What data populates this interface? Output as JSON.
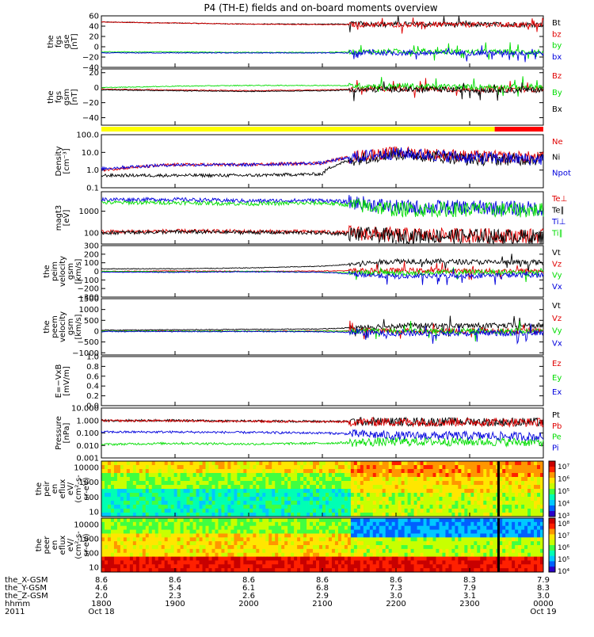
{
  "title": "P4 (TH-E) fields and on-board moments overview",
  "colors": {
    "black": "#000000",
    "red": "#e00000",
    "green": "#00dd00",
    "blue": "#0000dd",
    "yellow": "#ffff00",
    "brightred": "#ff0000"
  },
  "chart_data": [
    {
      "type": "line",
      "id": "fgs-gse",
      "ylabel": [
        "the",
        "fgs",
        "gse",
        "[nT]"
      ],
      "yticks": [
        "60",
        "40",
        "20",
        "0",
        "−20",
        "−40"
      ],
      "ylim": [
        -40,
        60
      ],
      "series": [
        {
          "name": "Bt",
          "color": "#000000",
          "levels": [
            48,
            46,
            44,
            44,
            44,
            43,
            43
          ]
        },
        {
          "name": "bz",
          "color": "#e00000",
          "levels": [
            48,
            46,
            44,
            43,
            43,
            43,
            42
          ]
        },
        {
          "name": "by",
          "color": "#00dd00",
          "levels": [
            -10,
            -10,
            -11,
            -11,
            -9,
            -10,
            -10
          ]
        },
        {
          "name": "bx",
          "color": "#0000dd",
          "levels": [
            -12,
            -12,
            -12,
            -12,
            -12,
            -12,
            -12
          ]
        }
      ]
    },
    {
      "type": "line",
      "id": "fgs-gsm",
      "ylabel": [
        "the",
        "fgs",
        "gsm",
        "[nT]"
      ],
      "yticks": [
        "20",
        "0",
        "−20",
        "−40"
      ],
      "ylim": [
        -50,
        25
      ],
      "series": [
        {
          "name": "Bz",
          "color": "#e00000",
          "levels": [
            -2,
            -3,
            -4,
            -3,
            -1,
            -2,
            -2
          ]
        },
        {
          "name": "By",
          "color": "#00dd00",
          "levels": [
            0,
            2,
            3,
            3,
            2,
            1,
            1
          ]
        },
        {
          "name": "Bx",
          "color": "#000000",
          "levels": [
            -3,
            -4,
            -5,
            -4,
            -2,
            -3,
            -3
          ]
        }
      ]
    },
    {
      "type": "line",
      "id": "density",
      "ylabel": [
        "Density",
        "[cm⁻³]"
      ],
      "yticks": [
        "100.0",
        "10.0",
        "1.0",
        "0.1"
      ],
      "ylim": [
        0.1,
        100
      ],
      "yscale": "log",
      "series": [
        {
          "name": "Ne",
          "color": "#e00000",
          "levels": [
            1.0,
            2.0,
            2.0,
            2.5,
            10,
            6,
            5
          ]
        },
        {
          "name": "Ni",
          "color": "#000000",
          "levels": [
            0.5,
            0.5,
            0.5,
            0.6,
            8,
            4,
            4
          ]
        },
        {
          "name": "Npot",
          "color": "#0000dd",
          "levels": [
            1.2,
            2.0,
            2.0,
            2.5,
            9,
            5,
            4
          ]
        }
      ]
    },
    {
      "type": "line",
      "id": "temperature",
      "ylabel": [
        "magt3",
        "[eV]"
      ],
      "yticks": [
        "1000",
        "100"
      ],
      "ylim": [
        30,
        8000
      ],
      "yscale": "log",
      "series": [
        {
          "name": "Te⊥",
          "color": "#e00000",
          "levels": [
            110,
            120,
            115,
            110,
            80,
            75,
            70
          ]
        },
        {
          "name": "Te∥",
          "color": "#000000",
          "levels": [
            100,
            110,
            105,
            100,
            70,
            70,
            65
          ]
        },
        {
          "name": "Ti⊥",
          "color": "#0000dd",
          "levels": [
            3500,
            3500,
            3000,
            3200,
            1500,
            1500,
            1300
          ]
        },
        {
          "name": "Ti∥",
          "color": "#00dd00",
          "levels": [
            2500,
            2500,
            2200,
            2400,
            1200,
            1200,
            1100
          ]
        }
      ]
    },
    {
      "type": "line",
      "id": "peim-velocity",
      "ylabel": [
        "the",
        "peim",
        "velocity",
        "gsm",
        "[km/s]"
      ],
      "yticks": [
        "300",
        "200",
        "100",
        "0",
        "−100",
        "−200",
        "−300"
      ],
      "ylim": [
        -300,
        300
      ],
      "series": [
        {
          "name": "Vt",
          "color": "#000000",
          "levels": [
            30,
            30,
            40,
            60,
            120,
            110,
            100
          ]
        },
        {
          "name": "Vz",
          "color": "#e00000",
          "levels": [
            0,
            5,
            0,
            5,
            10,
            5,
            5
          ]
        },
        {
          "name": "Vy",
          "color": "#00dd00",
          "levels": [
            0,
            -5,
            0,
            -10,
            -20,
            -10,
            -10
          ]
        },
        {
          "name": "Vx",
          "color": "#0000dd",
          "levels": [
            -10,
            -10,
            -5,
            -10,
            -60,
            -50,
            -40
          ]
        }
      ]
    },
    {
      "type": "line",
      "id": "peem-velocity",
      "ylabel": [
        "the",
        "peem",
        "velocity",
        "gsm",
        "[km/s]"
      ],
      "yticks": [
        "1500",
        "1000",
        "500",
        "0",
        "−500",
        "−1000"
      ],
      "ylim": [
        -1100,
        1500
      ],
      "series": [
        {
          "name": "Vt",
          "color": "#000000",
          "levels": [
            50,
            60,
            80,
            100,
            250,
            250,
            250
          ]
        },
        {
          "name": "Vz",
          "color": "#e00000",
          "levels": [
            0,
            0,
            0,
            10,
            0,
            0,
            0
          ]
        },
        {
          "name": "Vy",
          "color": "#00dd00",
          "levels": [
            0,
            0,
            0,
            0,
            0,
            0,
            0
          ]
        },
        {
          "name": "Vx",
          "color": "#0000dd",
          "levels": [
            -20,
            -20,
            -20,
            -30,
            -100,
            -100,
            -80
          ]
        }
      ]
    },
    {
      "type": "line",
      "id": "efield",
      "ylabel": [
        "E=−VxB",
        "[mV/m]"
      ],
      "yticks": [
        "1.0",
        "0.8",
        "0.6",
        "0.4",
        "0.2",
        "0.0"
      ],
      "ylim": [
        0,
        1
      ],
      "series": [
        {
          "name": "Ez",
          "color": "#e00000",
          "levels": []
        },
        {
          "name": "Ey",
          "color": "#00dd00",
          "levels": []
        },
        {
          "name": "Ex",
          "color": "#0000dd",
          "levels": []
        }
      ]
    },
    {
      "type": "line",
      "id": "pressure",
      "ylabel": [
        "Pressure",
        "[nPa]"
      ],
      "yticks": [
        "10.000",
        "1.000",
        "0.100",
        "0.010",
        "0.001"
      ],
      "ylim": [
        0.001,
        10
      ],
      "yscale": "log",
      "series": [
        {
          "name": "Pt",
          "color": "#000000",
          "levels": [
            1.0,
            1.0,
            0.9,
            0.85,
            0.8,
            0.8,
            0.75
          ]
        },
        {
          "name": "Pb",
          "color": "#e00000",
          "levels": [
            0.95,
            0.95,
            0.85,
            0.8,
            0.75,
            0.75,
            0.7
          ]
        },
        {
          "name": "Pe",
          "color": "#00dd00",
          "levels": [
            0.012,
            0.015,
            0.013,
            0.015,
            0.02,
            0.02,
            0.018
          ]
        },
        {
          "name": "Pi",
          "color": "#0000dd",
          "levels": [
            0.12,
            0.12,
            0.11,
            0.1,
            0.06,
            0.06,
            0.05
          ]
        }
      ]
    },
    {
      "type": "heatmap",
      "id": "peir-spectrogram",
      "ylabel": [
        "the",
        "peir",
        "en",
        "eflux",
        "eV/",
        "(cm²-s-",
        "sr-eV)"
      ],
      "yticks": [
        "10000",
        "1000",
        "100",
        "10"
      ],
      "colorbar": [
        "10⁷",
        "10⁶",
        "10⁵",
        "10⁴",
        "10³"
      ]
    },
    {
      "type": "heatmap",
      "id": "peer-spectrogram",
      "ylabel": [
        "the",
        "peer",
        "en",
        "eflux",
        "eV/",
        "(cm²-s-",
        "sr-eV)"
      ],
      "yticks": [
        "10000",
        "1000",
        "100",
        "10"
      ],
      "colorbar": [
        "10⁸",
        "10⁷",
        "10⁶",
        "10⁵",
        "10⁴"
      ]
    }
  ],
  "xaxis": {
    "rows": [
      {
        "label": "the_X-GSM",
        "values": [
          "8.6",
          "8.6",
          "8.6",
          "8.6",
          "8.6",
          "8.3",
          "7.9"
        ]
      },
      {
        "label": "the_Y-GSM",
        "values": [
          "4.6",
          "5.4",
          "6.1",
          "6.8",
          "7.3",
          "7.9",
          "8.3"
        ]
      },
      {
        "label": "the_Z-GSM",
        "values": [
          "2.0",
          "2.3",
          "2.6",
          "2.9",
          "3.0",
          "3.1",
          "3.0"
        ]
      },
      {
        "label": "hhmm",
        "values": [
          "1800",
          "1900",
          "2000",
          "2100",
          "2200",
          "2300",
          "0000"
        ]
      },
      {
        "label": "2011",
        "values": [
          "Oct 18",
          "",
          "",
          "",
          "",
          "",
          "Oct 19"
        ]
      }
    ]
  }
}
